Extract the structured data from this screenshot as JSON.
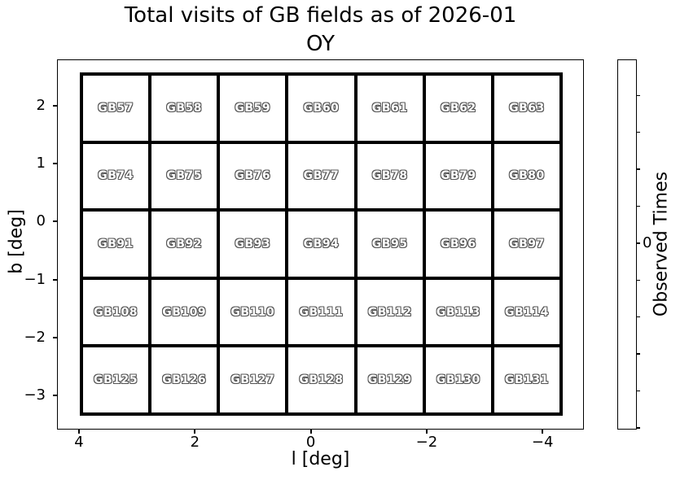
{
  "title": {
    "line1": "Total visits of GB fields as of 2026-01",
    "line2": "OY"
  },
  "chart_data": {
    "type": "heatmap",
    "title": "Total visits of GB fields as of 2026-01",
    "subtitle": "OY",
    "xlabel": "l [deg]",
    "ylabel": "b [deg]",
    "colorbar_label": "Observed Times",
    "x_ticks": [
      4,
      2,
      0,
      -2,
      -4
    ],
    "y_ticks": [
      2,
      1,
      0,
      -1,
      -2,
      -3
    ],
    "x_tick_labels": [
      "4",
      "2",
      "0",
      "−2",
      "−4"
    ],
    "y_tick_labels": [
      "2",
      "1",
      "0",
      "−1",
      "−2",
      "−3"
    ],
    "x_axis_reversed": true,
    "grid_shape": {
      "rows": 5,
      "cols": 7
    },
    "field_rows": [
      [
        "GB57",
        "GB58",
        "GB59",
        "GB60",
        "GB61",
        "GB62",
        "GB63"
      ],
      [
        "GB74",
        "GB75",
        "GB76",
        "GB77",
        "GB78",
        "GB79",
        "GB80"
      ],
      [
        "GB91",
        "GB92",
        "GB93",
        "GB94",
        "GB95",
        "GB96",
        "GB97"
      ],
      [
        "GB108",
        "GB109",
        "GB110",
        "GB111",
        "GB112",
        "GB113",
        "GB114"
      ],
      [
        "GB125",
        "GB126",
        "GB127",
        "GB128",
        "GB129",
        "GB130",
        "GB131"
      ]
    ],
    "values": [
      [
        0,
        0,
        0,
        0,
        0,
        0,
        0
      ],
      [
        0,
        0,
        0,
        0,
        0,
        0,
        0
      ],
      [
        0,
        0,
        0,
        0,
        0,
        0,
        0
      ],
      [
        0,
        0,
        0,
        0,
        0,
        0,
        0
      ],
      [
        0,
        0,
        0,
        0,
        0,
        0,
        0
      ]
    ],
    "colorbar_tick_labels": [
      "0"
    ],
    "colorbar_tick_count": 10,
    "colorbar_labeled_tick_index": 4,
    "legend_position": "right-colorbar"
  },
  "colors": {
    "background": "#ffffff",
    "frame": "#000000",
    "field_border": "#000000",
    "field_fill": "#ffffff",
    "field_label_fill": "#ffffff",
    "field_label_outline": "#555555",
    "text": "#000000"
  }
}
